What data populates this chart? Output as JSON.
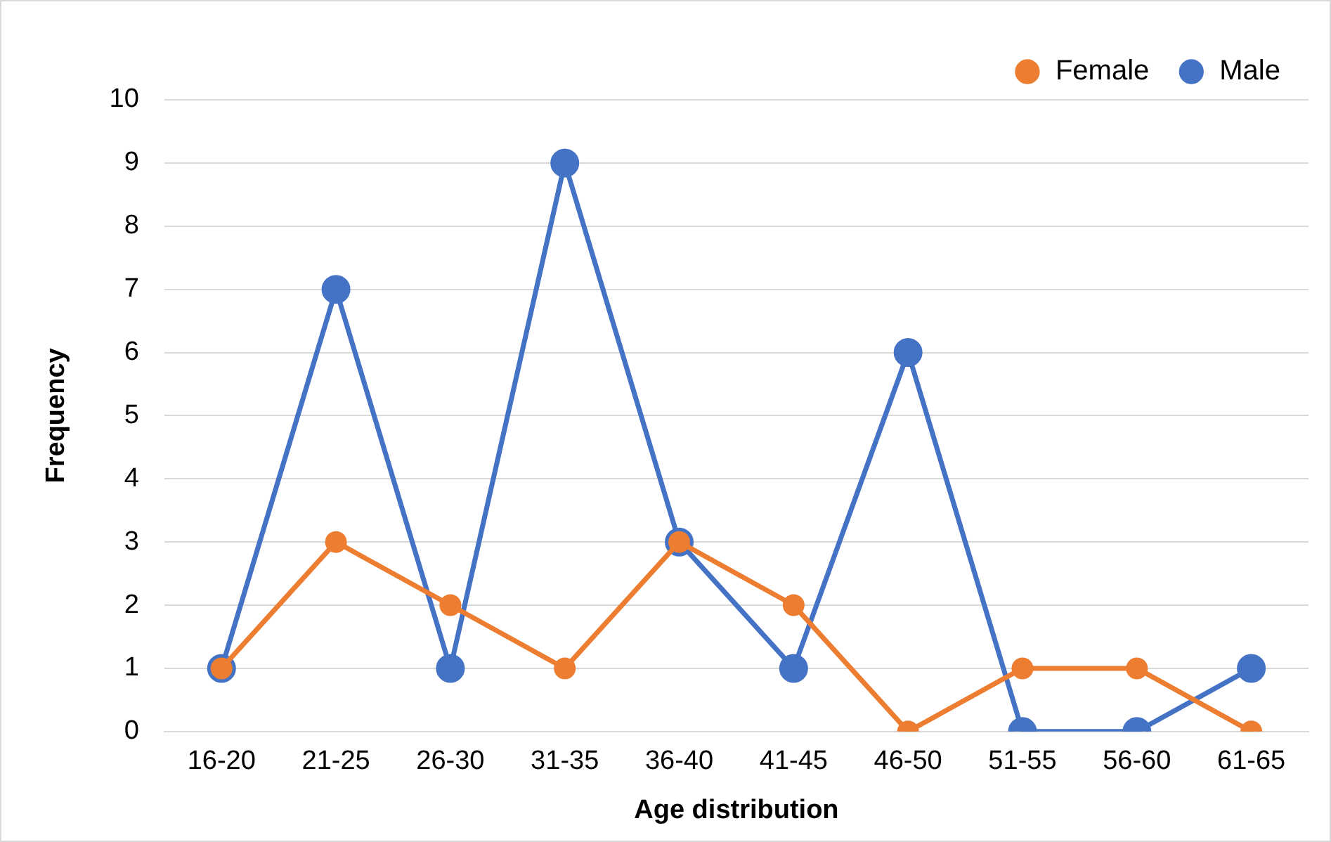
{
  "chart_data": {
    "type": "line",
    "xlabel": "Age distribution",
    "ylabel": "Frequency",
    "categories": [
      "16-20",
      "21-25",
      "26-30",
      "31-35",
      "36-40",
      "41-45",
      "46-50",
      "51-55",
      "56-60",
      "61-65"
    ],
    "series": [
      {
        "name": "Male",
        "color": "#4472c4",
        "values": [
          1,
          7,
          1,
          9,
          3,
          1,
          6,
          0,
          0,
          1
        ]
      },
      {
        "name": "Female",
        "color": "#ed7d31",
        "values": [
          1,
          3,
          2,
          1,
          3,
          2,
          0,
          1,
          1,
          0
        ]
      }
    ],
    "ylim": [
      0,
      10
    ],
    "yticks": [
      0,
      1,
      2,
      3,
      4,
      5,
      6,
      7,
      8,
      9,
      10
    ],
    "grid": "y",
    "legend": "top right",
    "marker": "circle",
    "line_style": "solid"
  }
}
